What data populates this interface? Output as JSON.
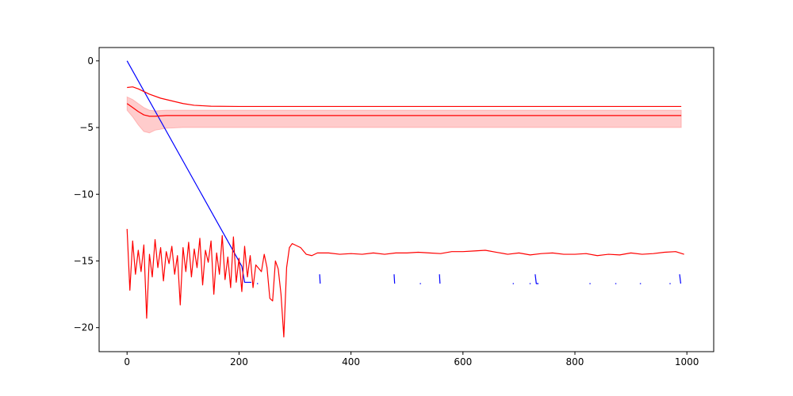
{
  "chart_data": {
    "type": "line",
    "xlim": [
      -49.9,
      1047.9
    ],
    "ylim": [
      -21.8,
      1.0
    ],
    "xticks": [
      0,
      200,
      400,
      600,
      800,
      1000
    ],
    "yticks": [
      0,
      {
        "value": -5,
        "label": "−5"
      },
      {
        "value": -10,
        "label": "−10"
      },
      {
        "value": -15,
        "label": "−15"
      },
      {
        "value": -20,
        "label": "−20"
      }
    ],
    "series": [
      {
        "color": "#0000ff",
        "x": [
          0,
          205,
          210,
          222,
          228,
          232,
          234,
          300,
          344,
          345,
          400,
          477,
          478,
          500,
          523,
          525,
          540,
          558,
          559,
          600,
          689,
          691,
          700,
          719,
          721,
          725,
          729,
          731,
          735,
          780,
          826,
          828,
          850,
          872,
          874,
          900,
          916,
          918,
          940,
          969,
          971,
          980,
          987,
          989
        ],
        "values": [
          0,
          -15.4,
          -16.6,
          -16.6,
          null,
          -16.7,
          -16.7,
          null,
          -16.0,
          -16.7,
          null,
          -16.0,
          -16.7,
          null,
          -16.7,
          -16.7,
          null,
          -16.0,
          -16.7,
          null,
          -16.7,
          -16.7,
          null,
          -16.7,
          -16.7,
          null,
          -16.0,
          -16.7,
          -16.7,
          null,
          -16.7,
          -16.7,
          null,
          -16.7,
          -16.7,
          null,
          -16.7,
          -16.7,
          null,
          -16.7,
          -16.7,
          null,
          -16.0,
          -16.7
        ]
      },
      {
        "color": "#ff0000",
        "x": [
          0,
          5,
          10,
          15,
          20,
          25,
          30,
          35,
          40,
          45,
          50,
          55,
          60,
          65,
          70,
          75,
          80,
          85,
          90,
          95,
          100,
          105,
          110,
          115,
          120,
          125,
          130,
          135,
          140,
          145,
          150,
          155,
          160,
          165,
          170,
          175,
          180,
          185,
          190,
          195,
          200,
          205,
          210,
          215,
          220,
          225,
          230,
          240,
          245,
          250,
          255,
          260,
          265,
          270,
          275,
          280,
          285,
          290,
          295,
          300,
          310,
          320,
          330,
          340,
          360,
          380,
          400,
          420,
          440,
          460,
          480,
          500,
          520,
          540,
          560,
          580,
          600,
          620,
          640,
          660,
          680,
          700,
          720,
          740,
          760,
          780,
          800,
          820,
          840,
          860,
          880,
          900,
          920,
          940,
          960,
          980,
          995
        ],
        "values": [
          -12.6,
          -17.2,
          -13.5,
          -16.0,
          -14.2,
          -15.8,
          -13.8,
          -19.3,
          -14.5,
          -16.2,
          -13.4,
          -15.5,
          -14.0,
          -16.5,
          -14.3,
          -15.2,
          -13.9,
          -16.0,
          -14.6,
          -18.3,
          -14.0,
          -15.8,
          -13.6,
          -16.2,
          -14.1,
          -15.5,
          -13.3,
          -16.8,
          -14.2,
          -15.1,
          -13.5,
          -17.5,
          -14.4,
          -16.0,
          -13.1,
          -16.4,
          -14.7,
          -17.0,
          -13.2,
          -16.6,
          -14.8,
          -17.3,
          -13.9,
          -16.2,
          -14.6,
          -17.0,
          -15.3,
          -15.8,
          -14.5,
          -15.5,
          -17.8,
          -18.0,
          -15.0,
          -15.6,
          -17.5,
          -20.7,
          -15.5,
          -14.0,
          -13.7,
          -13.8,
          -14.0,
          -14.5,
          -14.6,
          -14.4,
          -14.4,
          -14.5,
          -14.45,
          -14.5,
          -14.4,
          -14.5,
          -14.4,
          -14.4,
          -14.35,
          -14.4,
          -14.45,
          -14.3,
          -14.3,
          -14.25,
          -14.2,
          -14.35,
          -14.5,
          -14.4,
          -14.55,
          -14.45,
          -14.4,
          -14.5,
          -14.5,
          -14.45,
          -14.6,
          -14.5,
          -14.55,
          -14.4,
          -14.5,
          -14.45,
          -14.35,
          -14.3,
          -14.5
        ]
      },
      {
        "color": "#ff0000",
        "x": [
          0,
          10,
          20,
          40,
          60,
          80,
          100,
          120,
          150,
          200,
          990
        ],
        "values": [
          -2.0,
          -1.95,
          -2.1,
          -2.5,
          -2.8,
          -3.0,
          -3.2,
          -3.33,
          -3.4,
          -3.42,
          -3.42
        ]
      },
      {
        "color": "#ff0000",
        "x": [
          0,
          10,
          20,
          30,
          40,
          50,
          70,
          100,
          990
        ],
        "values": [
          -3.2,
          -3.5,
          -3.8,
          -4.05,
          -4.15,
          -4.15,
          -4.1,
          -4.1,
          -4.1
        ],
        "band": {
          "upper": [
            -2.7,
            -2.9,
            -3.2,
            -3.5,
            -3.7,
            -3.75,
            -3.7,
            -3.7,
            -3.7
          ],
          "lower": [
            -3.7,
            -4.2,
            -4.8,
            -5.3,
            -5.4,
            -5.2,
            -5.05,
            -5.0,
            -5.0
          ]
        }
      }
    ]
  }
}
